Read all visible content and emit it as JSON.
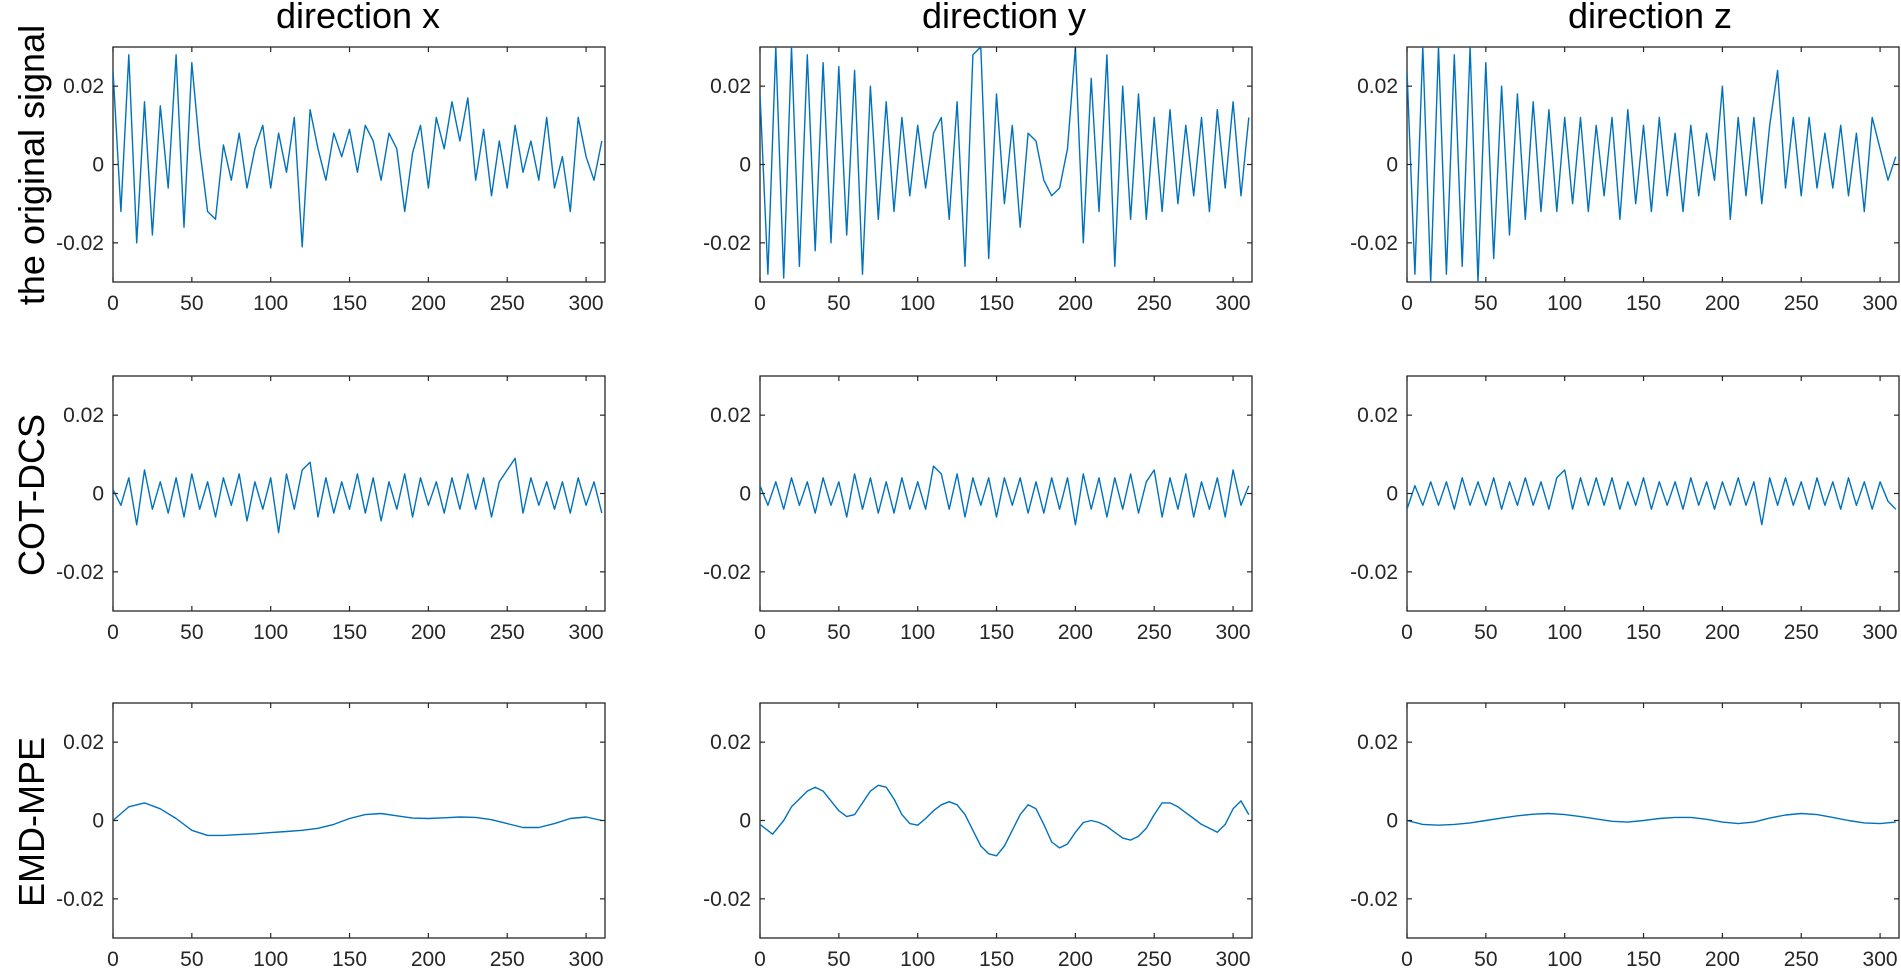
{
  "figure": {
    "column_titles": [
      "direction x",
      "direction y",
      "direction z"
    ],
    "row_labels": [
      "the original signal",
      "COT-DCS",
      "EMD-MPE"
    ]
  },
  "style": {
    "line_color": "#0072BD",
    "axis_color": "#262626"
  },
  "chart_data": [
    {
      "type": "line",
      "row": 0,
      "col": 0,
      "title": "direction x",
      "ylabel": "the original signal",
      "xlim": [
        0,
        312
      ],
      "ylim": [
        -0.03,
        0.03
      ],
      "xticks": [
        0,
        50,
        100,
        150,
        200,
        250,
        300
      ],
      "yticks": [
        -0.02,
        0,
        0.02
      ],
      "ytick_labels": [
        "-0.02",
        "0",
        "0.02"
      ],
      "grid": false,
      "x": [
        0,
        5,
        10,
        15,
        20,
        25,
        30,
        35,
        40,
        45,
        50,
        55,
        60,
        65,
        70,
        75,
        80,
        85,
        90,
        95,
        100,
        105,
        110,
        115,
        120,
        125,
        130,
        135,
        140,
        145,
        150,
        155,
        160,
        165,
        170,
        175,
        180,
        185,
        190,
        195,
        200,
        205,
        210,
        215,
        220,
        225,
        230,
        235,
        240,
        245,
        250,
        255,
        260,
        265,
        270,
        275,
        280,
        285,
        290,
        295,
        300,
        305,
        310
      ],
      "y": [
        0.024,
        -0.012,
        0.028,
        -0.02,
        0.016,
        -0.018,
        0.015,
        -0.006,
        0.028,
        -0.016,
        0.026,
        0.004,
        -0.012,
        -0.014,
        0.005,
        -0.004,
        0.008,
        -0.006,
        0.004,
        0.01,
        -0.006,
        0.008,
        -0.002,
        0.012,
        -0.021,
        0.014,
        0.004,
        -0.004,
        0.008,
        0.002,
        0.009,
        -0.002,
        0.01,
        0.006,
        -0.004,
        0.008,
        0.004,
        -0.012,
        0.003,
        0.01,
        -0.006,
        0.012,
        0.004,
        0.016,
        0.006,
        0.017,
        -0.004,
        0.009,
        -0.008,
        0.006,
        -0.006,
        0.01,
        -0.002,
        0.006,
        -0.004,
        0.012,
        -0.006,
        0.002,
        -0.012,
        0.012,
        0.002,
        -0.004,
        0.006
      ]
    },
    {
      "type": "line",
      "row": 0,
      "col": 1,
      "title": "direction y",
      "ylabel": "",
      "xlim": [
        0,
        312
      ],
      "ylim": [
        -0.03,
        0.03
      ],
      "xticks": [
        0,
        50,
        100,
        150,
        200,
        250,
        300
      ],
      "yticks": [
        -0.02,
        0,
        0.02
      ],
      "ytick_labels": [
        "-0.02",
        "0",
        "0.02"
      ],
      "grid": false,
      "x": [
        0,
        5,
        10,
        15,
        20,
        25,
        30,
        35,
        40,
        45,
        50,
        55,
        60,
        65,
        70,
        75,
        80,
        85,
        90,
        95,
        100,
        105,
        110,
        115,
        120,
        125,
        130,
        135,
        140,
        145,
        150,
        155,
        160,
        165,
        170,
        175,
        180,
        185,
        190,
        195,
        200,
        205,
        210,
        215,
        220,
        225,
        230,
        235,
        240,
        245,
        250,
        255,
        260,
        265,
        270,
        275,
        280,
        285,
        290,
        295,
        300,
        305,
        310
      ],
      "y": [
        0.018,
        -0.028,
        0.03,
        -0.029,
        0.03,
        -0.026,
        0.028,
        -0.022,
        0.026,
        -0.02,
        0.025,
        -0.018,
        0.024,
        -0.028,
        0.02,
        -0.014,
        0.016,
        -0.012,
        0.012,
        -0.008,
        0.01,
        -0.006,
        0.008,
        0.012,
        -0.014,
        0.016,
        -0.026,
        0.028,
        0.03,
        -0.024,
        0.018,
        -0.01,
        0.01,
        -0.016,
        0.008,
        0.006,
        -0.004,
        -0.008,
        -0.006,
        0.004,
        0.03,
        -0.02,
        0.022,
        -0.012,
        0.028,
        -0.026,
        0.02,
        -0.014,
        0.018,
        -0.014,
        0.012,
        -0.012,
        0.014,
        -0.01,
        0.01,
        -0.008,
        0.012,
        -0.012,
        0.014,
        -0.006,
        0.016,
        -0.008,
        0.012
      ]
    },
    {
      "type": "line",
      "row": 0,
      "col": 2,
      "title": "direction z",
      "ylabel": "",
      "xlim": [
        0,
        312
      ],
      "ylim": [
        -0.03,
        0.03
      ],
      "xticks": [
        0,
        50,
        100,
        150,
        200,
        250,
        300
      ],
      "yticks": [
        -0.02,
        0,
        0.02
      ],
      "ytick_labels": [
        "-0.02",
        "0",
        "0.02"
      ],
      "grid": false,
      "x": [
        0,
        5,
        10,
        15,
        20,
        25,
        30,
        35,
        40,
        45,
        50,
        55,
        60,
        65,
        70,
        75,
        80,
        85,
        90,
        95,
        100,
        105,
        110,
        115,
        120,
        125,
        130,
        135,
        140,
        145,
        150,
        155,
        160,
        165,
        170,
        175,
        180,
        185,
        190,
        195,
        200,
        205,
        210,
        215,
        220,
        225,
        230,
        235,
        240,
        245,
        250,
        255,
        260,
        265,
        270,
        275,
        280,
        285,
        290,
        295,
        300,
        305,
        310
      ],
      "y": [
        0.024,
        -0.028,
        0.03,
        -0.03,
        0.03,
        -0.028,
        0.028,
        -0.026,
        0.03,
        -0.03,
        0.026,
        -0.024,
        0.02,
        -0.018,
        0.018,
        -0.014,
        0.016,
        -0.012,
        0.014,
        -0.012,
        0.012,
        -0.01,
        0.012,
        -0.012,
        0.01,
        -0.008,
        0.012,
        -0.014,
        0.014,
        -0.01,
        0.01,
        -0.012,
        0.012,
        -0.008,
        0.008,
        -0.012,
        0.01,
        -0.008,
        0.008,
        -0.004,
        0.02,
        -0.014,
        0.012,
        -0.008,
        0.012,
        -0.01,
        0.01,
        0.024,
        -0.006,
        0.012,
        -0.008,
        0.012,
        -0.006,
        0.008,
        -0.006,
        0.01,
        -0.008,
        0.008,
        -0.012,
        0.012,
        0.004,
        -0.004,
        0.002
      ]
    },
    {
      "type": "line",
      "row": 1,
      "col": 0,
      "title": "",
      "ylabel": "COT-DCS",
      "xlim": [
        0,
        312
      ],
      "ylim": [
        -0.03,
        0.03
      ],
      "xticks": [
        0,
        50,
        100,
        150,
        200,
        250,
        300
      ],
      "yticks": [
        -0.02,
        0,
        0.02
      ],
      "ytick_labels": [
        "-0.02",
        "0",
        "0.02"
      ],
      "grid": false,
      "x": [
        0,
        5,
        10,
        15,
        20,
        25,
        30,
        35,
        40,
        45,
        50,
        55,
        60,
        65,
        70,
        75,
        80,
        85,
        90,
        95,
        100,
        105,
        110,
        115,
        120,
        125,
        130,
        135,
        140,
        145,
        150,
        155,
        160,
        165,
        170,
        175,
        180,
        185,
        190,
        195,
        200,
        205,
        210,
        215,
        220,
        225,
        230,
        235,
        240,
        245,
        250,
        255,
        260,
        265,
        270,
        275,
        280,
        285,
        290,
        295,
        300,
        305,
        310
      ],
      "y": [
        0.001,
        -0.003,
        0.004,
        -0.008,
        0.006,
        -0.004,
        0.003,
        -0.005,
        0.004,
        -0.006,
        0.005,
        -0.004,
        0.003,
        -0.006,
        0.004,
        -0.003,
        0.005,
        -0.007,
        0.003,
        -0.004,
        0.004,
        -0.01,
        0.005,
        -0.004,
        0.006,
        0.008,
        -0.006,
        0.004,
        -0.005,
        0.003,
        -0.004,
        0.005,
        -0.005,
        0.004,
        -0.007,
        0.003,
        -0.004,
        0.005,
        -0.006,
        0.004,
        -0.003,
        0.003,
        -0.005,
        0.004,
        -0.004,
        0.005,
        -0.004,
        0.004,
        -0.006,
        0.003,
        0.006,
        0.009,
        -0.005,
        0.004,
        -0.003,
        0.003,
        -0.004,
        0.003,
        -0.005,
        0.004,
        -0.003,
        0.003,
        -0.005
      ]
    },
    {
      "type": "line",
      "row": 1,
      "col": 1,
      "title": "",
      "ylabel": "",
      "xlim": [
        0,
        312
      ],
      "ylim": [
        -0.03,
        0.03
      ],
      "xticks": [
        0,
        50,
        100,
        150,
        200,
        250,
        300
      ],
      "yticks": [
        -0.02,
        0,
        0.02
      ],
      "ytick_labels": [
        "-0.02",
        "0",
        "0.02"
      ],
      "grid": false,
      "x": [
        0,
        5,
        10,
        15,
        20,
        25,
        30,
        35,
        40,
        45,
        50,
        55,
        60,
        65,
        70,
        75,
        80,
        85,
        90,
        95,
        100,
        105,
        110,
        115,
        120,
        125,
        130,
        135,
        140,
        145,
        150,
        155,
        160,
        165,
        170,
        175,
        180,
        185,
        190,
        195,
        200,
        205,
        210,
        215,
        220,
        225,
        230,
        235,
        240,
        245,
        250,
        255,
        260,
        265,
        270,
        275,
        280,
        285,
        290,
        295,
        300,
        305,
        310
      ],
      "y": [
        0.002,
        -0.003,
        0.003,
        -0.004,
        0.004,
        -0.003,
        0.003,
        -0.005,
        0.004,
        -0.003,
        0.003,
        -0.006,
        0.005,
        -0.004,
        0.004,
        -0.005,
        0.003,
        -0.005,
        0.004,
        -0.004,
        0.003,
        -0.004,
        0.007,
        0.005,
        -0.004,
        0.005,
        -0.006,
        0.004,
        -0.003,
        0.004,
        -0.006,
        0.004,
        -0.003,
        0.004,
        -0.005,
        0.003,
        -0.005,
        0.004,
        -0.004,
        0.004,
        -0.008,
        0.005,
        -0.004,
        0.004,
        -0.006,
        0.004,
        -0.004,
        0.005,
        -0.005,
        0.003,
        0.006,
        -0.006,
        0.004,
        -0.004,
        0.005,
        -0.006,
        0.003,
        -0.004,
        0.004,
        -0.006,
        0.006,
        -0.003,
        0.002
      ]
    },
    {
      "type": "line",
      "row": 1,
      "col": 2,
      "title": "",
      "ylabel": "",
      "xlim": [
        0,
        312
      ],
      "ylim": [
        -0.03,
        0.03
      ],
      "xticks": [
        0,
        50,
        100,
        150,
        200,
        250,
        300
      ],
      "yticks": [
        -0.02,
        0,
        0.02
      ],
      "ytick_labels": [
        "-0.02",
        "0",
        "0.02"
      ],
      "grid": false,
      "x": [
        0,
        5,
        10,
        15,
        20,
        25,
        30,
        35,
        40,
        45,
        50,
        55,
        60,
        65,
        70,
        75,
        80,
        85,
        90,
        95,
        100,
        105,
        110,
        115,
        120,
        125,
        130,
        135,
        140,
        145,
        150,
        155,
        160,
        165,
        170,
        175,
        180,
        185,
        190,
        195,
        200,
        205,
        210,
        215,
        220,
        225,
        230,
        235,
        240,
        245,
        250,
        255,
        260,
        265,
        270,
        275,
        280,
        285,
        290,
        295,
        300,
        305,
        310
      ],
      "y": [
        -0.004,
        0.002,
        -0.003,
        0.003,
        -0.003,
        0.003,
        -0.004,
        0.004,
        -0.003,
        0.003,
        -0.003,
        0.004,
        -0.004,
        0.003,
        -0.003,
        0.004,
        -0.003,
        0.003,
        -0.004,
        0.004,
        0.006,
        -0.004,
        0.004,
        -0.003,
        0.004,
        -0.003,
        0.004,
        -0.004,
        0.003,
        -0.003,
        0.004,
        -0.004,
        0.003,
        -0.003,
        0.003,
        -0.004,
        0.004,
        -0.003,
        0.003,
        -0.004,
        0.003,
        -0.003,
        0.004,
        -0.003,
        0.003,
        -0.008,
        0.004,
        -0.003,
        0.004,
        -0.003,
        0.003,
        -0.004,
        0.004,
        -0.003,
        0.003,
        -0.004,
        0.004,
        -0.003,
        0.003,
        -0.004,
        0.003,
        -0.002,
        -0.004
      ]
    },
    {
      "type": "line",
      "row": 2,
      "col": 0,
      "title": "",
      "ylabel": "EMD-MPE",
      "xlim": [
        0,
        312
      ],
      "ylim": [
        -0.03,
        0.03
      ],
      "xticks": [
        0,
        50,
        100,
        150,
        200,
        250,
        300
      ],
      "yticks": [
        -0.02,
        0,
        0.02
      ],
      "ytick_labels": [
        "-0.02",
        "0",
        "0.02"
      ],
      "grid": false,
      "x": [
        0,
        10,
        20,
        30,
        40,
        50,
        60,
        70,
        80,
        90,
        100,
        110,
        120,
        130,
        140,
        150,
        160,
        170,
        180,
        190,
        200,
        210,
        220,
        230,
        240,
        250,
        260,
        270,
        280,
        290,
        300,
        310
      ],
      "y": [
        0.0,
        0.0035,
        0.0045,
        0.003,
        0.0005,
        -0.0025,
        -0.0038,
        -0.0038,
        -0.0036,
        -0.0034,
        -0.0031,
        -0.0028,
        -0.0025,
        -0.002,
        -0.001,
        0.0005,
        0.0015,
        0.0018,
        0.0012,
        0.0006,
        0.0005,
        0.0007,
        0.0009,
        0.0008,
        0.0002,
        -0.0008,
        -0.0018,
        -0.0018,
        -0.0008,
        0.0005,
        0.0009,
        0.0
      ]
    },
    {
      "type": "line",
      "row": 2,
      "col": 1,
      "title": "",
      "ylabel": "",
      "xlim": [
        0,
        312
      ],
      "ylim": [
        -0.03,
        0.03
      ],
      "xticks": [
        0,
        50,
        100,
        150,
        200,
        250,
        300
      ],
      "yticks": [
        -0.02,
        0,
        0.02
      ],
      "ytick_labels": [
        "-0.02",
        "0",
        "0.02"
      ],
      "grid": false,
      "x": [
        0,
        8,
        15,
        20,
        25,
        30,
        35,
        40,
        45,
        50,
        55,
        60,
        65,
        70,
        75,
        80,
        85,
        90,
        95,
        100,
        105,
        110,
        115,
        120,
        125,
        130,
        135,
        140,
        145,
        150,
        155,
        160,
        165,
        170,
        175,
        180,
        185,
        190,
        195,
        200,
        205,
        210,
        215,
        220,
        225,
        230,
        235,
        240,
        245,
        250,
        255,
        260,
        265,
        270,
        275,
        280,
        285,
        290,
        295,
        300,
        305,
        310
      ],
      "y": [
        -0.001,
        -0.0035,
        0.0,
        0.0035,
        0.0055,
        0.0075,
        0.0085,
        0.0075,
        0.005,
        0.0025,
        0.001,
        0.0015,
        0.0045,
        0.0075,
        0.009,
        0.0085,
        0.0055,
        0.0015,
        -0.0008,
        -0.0012,
        0.0005,
        0.0025,
        0.004,
        0.0048,
        0.004,
        0.0015,
        -0.0025,
        -0.0065,
        -0.0085,
        -0.009,
        -0.0065,
        -0.0025,
        0.0015,
        0.004,
        0.003,
        -0.001,
        -0.0055,
        -0.007,
        -0.006,
        -0.003,
        -0.0005,
        0.0,
        -0.0005,
        -0.0015,
        -0.003,
        -0.0045,
        -0.005,
        -0.004,
        -0.002,
        0.0015,
        0.0045,
        0.0045,
        0.0035,
        0.002,
        0.0005,
        -0.001,
        -0.002,
        -0.003,
        -0.001,
        0.003,
        0.005,
        0.0015
      ]
    },
    {
      "type": "line",
      "row": 2,
      "col": 2,
      "title": "",
      "ylabel": "",
      "xlim": [
        0,
        312
      ],
      "ylim": [
        -0.03,
        0.03
      ],
      "xticks": [
        0,
        50,
        100,
        150,
        200,
        250,
        300
      ],
      "yticks": [
        -0.02,
        0,
        0.02
      ],
      "ytick_labels": [
        "-0.02",
        "0",
        "0.02"
      ],
      "grid": false,
      "x": [
        0,
        10,
        20,
        30,
        40,
        50,
        60,
        70,
        80,
        90,
        100,
        110,
        120,
        130,
        140,
        150,
        160,
        170,
        180,
        190,
        200,
        210,
        220,
        230,
        240,
        250,
        260,
        270,
        280,
        290,
        300,
        310
      ],
      "y": [
        0.0,
        -0.001,
        -0.0012,
        -0.001,
        -0.0006,
        0.0,
        0.0006,
        0.0012,
        0.0016,
        0.0018,
        0.0015,
        0.001,
        0.0004,
        -0.0002,
        -0.0004,
        0.0,
        0.0005,
        0.0008,
        0.0008,
        0.0003,
        -0.0004,
        -0.0008,
        -0.0004,
        0.0006,
        0.0014,
        0.0018,
        0.0015,
        0.0008,
        0.0,
        -0.0006,
        -0.0008,
        -0.0004
      ]
    }
  ]
}
